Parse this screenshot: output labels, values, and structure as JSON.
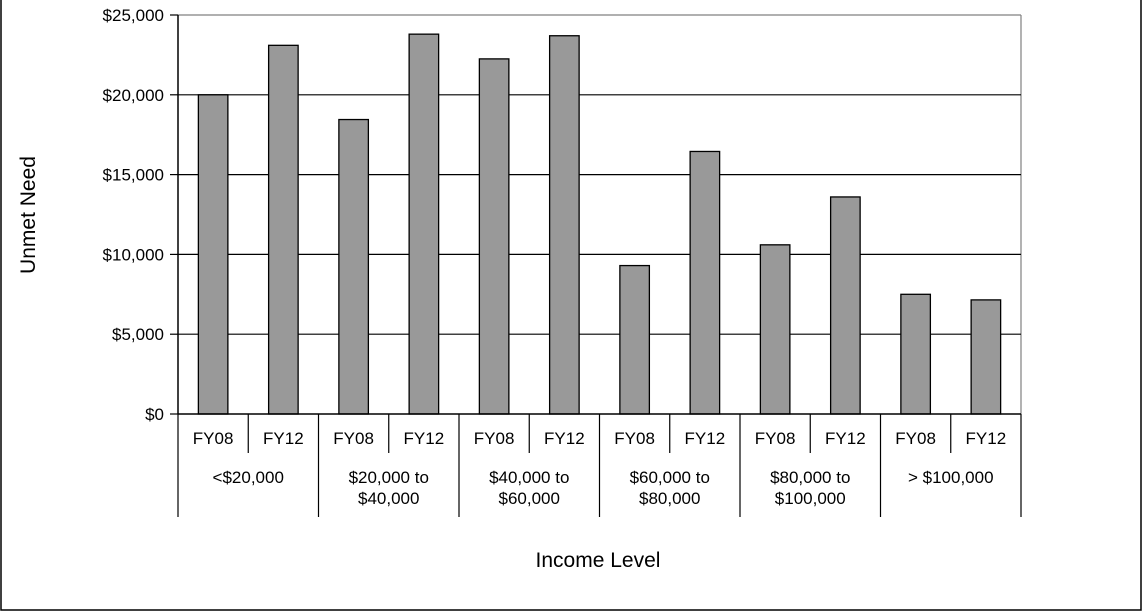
{
  "chart_data": {
    "type": "bar",
    "title": "",
    "xlabel": "Income Level",
    "ylabel": "Unmet Need",
    "ylim": [
      0,
      25000
    ],
    "yticks": [
      0,
      5000,
      10000,
      15000,
      20000,
      25000
    ],
    "ytick_labels": [
      "$0",
      "$5,000",
      "$10,000",
      "$15,000",
      "$20,000",
      "$25,000"
    ],
    "grid": true,
    "legend": "none",
    "bar_color": "#999999",
    "groups": [
      {
        "label_lines": [
          "<$20,000"
        ],
        "bars": [
          {
            "category": "FY08",
            "value": 20000
          },
          {
            "category": "FY12",
            "value": 23100
          }
        ]
      },
      {
        "label_lines": [
          "$20,000 to",
          "$40,000"
        ],
        "bars": [
          {
            "category": "FY08",
            "value": 18450
          },
          {
            "category": "FY12",
            "value": 23800
          }
        ]
      },
      {
        "label_lines": [
          "$40,000 to",
          "$60,000"
        ],
        "bars": [
          {
            "category": "FY08",
            "value": 22250
          },
          {
            "category": "FY12",
            "value": 23700
          }
        ]
      },
      {
        "label_lines": [
          "$60,000 to",
          "$80,000"
        ],
        "bars": [
          {
            "category": "FY08",
            "value": 9300
          },
          {
            "category": "FY12",
            "value": 16450
          }
        ]
      },
      {
        "label_lines": [
          "$80,000 to",
          "$100,000"
        ],
        "bars": [
          {
            "category": "FY08",
            "value": 10600
          },
          {
            "category": "FY12",
            "value": 13600
          }
        ]
      },
      {
        "label_lines": [
          "> $100,000"
        ],
        "bars": [
          {
            "category": "FY08",
            "value": 7500
          },
          {
            "category": "FY12",
            "value": 7150
          }
        ]
      }
    ]
  }
}
